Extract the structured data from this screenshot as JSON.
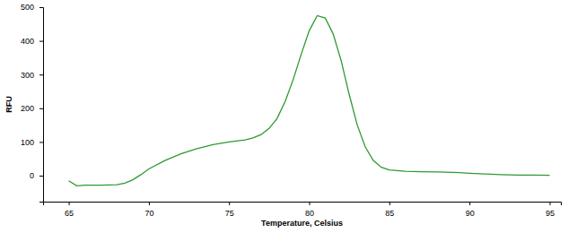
{
  "chart_data": {
    "type": "line",
    "x_label": "Temperature, Celsius",
    "y_label": "RFU",
    "x": [
      65,
      65.5,
      66,
      67,
      68,
      68.5,
      69,
      69.5,
      70,
      71,
      72,
      73,
      74,
      75,
      76,
      76.5,
      77,
      77.5,
      78,
      78.5,
      79,
      79.5,
      80,
      80.5,
      81,
      81.5,
      82,
      82.5,
      83,
      83.5,
      84,
      84.5,
      85,
      86,
      87,
      88,
      89,
      90,
      91,
      92,
      93,
      94,
      95
    ],
    "values": [
      -15,
      -30,
      -28,
      -28,
      -27,
      -22,
      -12,
      3,
      20,
      45,
      65,
      80,
      92,
      100,
      106,
      112,
      122,
      140,
      170,
      220,
      285,
      360,
      430,
      475,
      468,
      420,
      340,
      240,
      150,
      85,
      45,
      25,
      17,
      13,
      12,
      11,
      10,
      7,
      5,
      3,
      2,
      2,
      1
    ],
    "color": "#2e9a2e",
    "xlim": [
      63.4,
      95.7
    ],
    "xticks": [
      65,
      70,
      75,
      80,
      85,
      90,
      95
    ],
    "ylim": [
      -77,
      500
    ],
    "yticks": [
      0,
      100,
      200,
      300,
      400,
      500
    ],
    "grid": false
  }
}
